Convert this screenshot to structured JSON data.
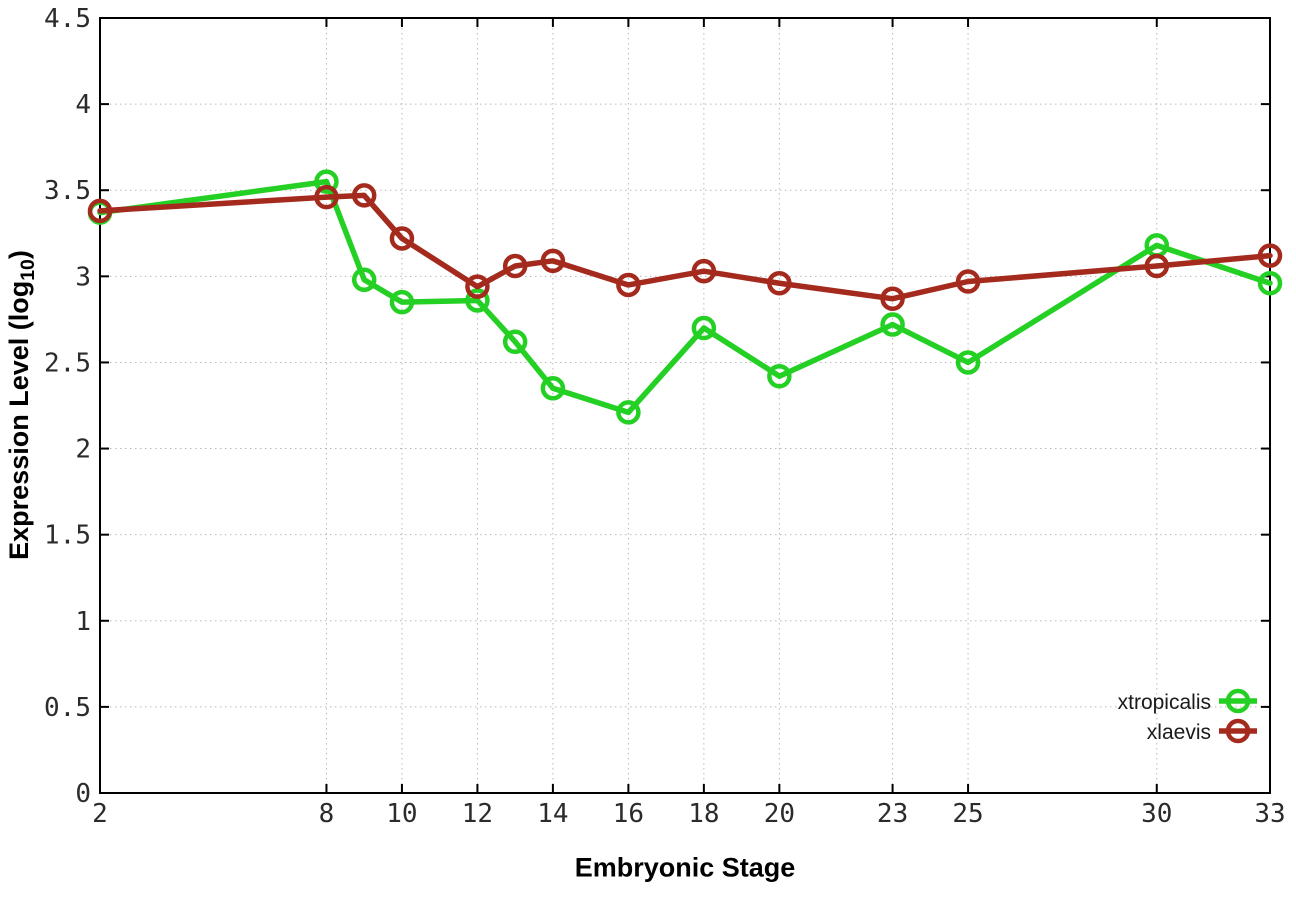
{
  "background": "#ffffff",
  "chart_data": {
    "type": "line",
    "title": "",
    "xlabel": "Embryonic Stage",
    "ylabel": "Expression Level (log10)",
    "ylabel_parts": {
      "prefix": "Expression Level (log",
      "subscript": "10",
      "suffix": ")"
    },
    "xlim": [
      2,
      33
    ],
    "ylim": [
      0,
      4.5
    ],
    "x_ticks": [
      2,
      8,
      10,
      12,
      14,
      16,
      18,
      20,
      23,
      25,
      30,
      33
    ],
    "x_tick_labels": [
      "2",
      "8",
      "10",
      "12",
      "14",
      "16",
      "18",
      "20",
      "23",
      "25",
      "30",
      "33"
    ],
    "y_ticks": [
      0,
      0.5,
      1,
      1.5,
      2,
      2.5,
      3,
      3.5,
      4,
      4.5
    ],
    "y_tick_labels": [
      "0",
      "0.5",
      "1",
      "1.5",
      "2",
      "2.5",
      "3",
      "3.5",
      "4",
      "4.5"
    ],
    "grid": true,
    "grid_style": "dotted",
    "legend_position": "inside-bottom-right",
    "x": [
      2,
      8,
      9,
      10,
      12,
      13,
      14,
      16,
      18,
      20,
      23,
      25,
      30,
      33
    ],
    "series": [
      {
        "name": "xtropicalis",
        "color": "#23d023",
        "marker": "open-circle",
        "values": [
          3.37,
          3.55,
          2.98,
          2.85,
          2.86,
          2.62,
          2.35,
          2.21,
          2.7,
          2.42,
          2.72,
          2.5,
          3.18,
          2.96
        ]
      },
      {
        "name": "xlaevis",
        "color": "#a52a1e",
        "marker": "open-circle",
        "values": [
          3.38,
          3.46,
          3.47,
          3.22,
          2.94,
          3.06,
          3.09,
          2.95,
          3.03,
          2.96,
          2.87,
          2.97,
          3.06,
          3.12
        ]
      }
    ],
    "frame_color": "#000000",
    "grid_color": "#b9b9b9",
    "tick_label_color": "#2b2b2b"
  }
}
